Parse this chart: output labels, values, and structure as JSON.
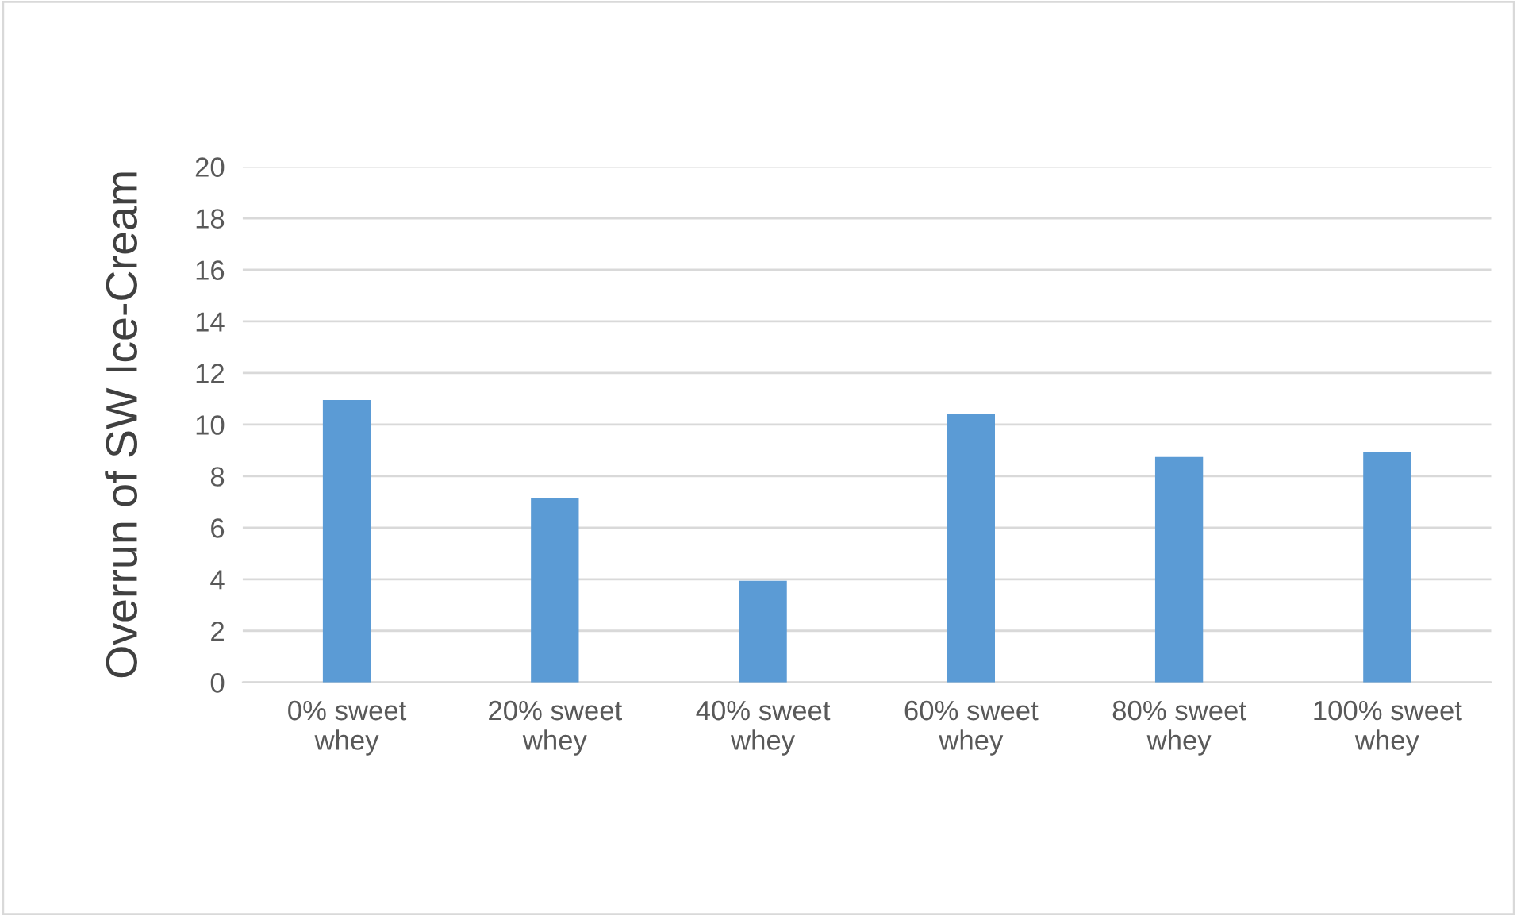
{
  "chart_data": {
    "type": "bar",
    "ylabel": "Overrun of SW Ice-Cream",
    "categories": [
      "0% sweet\nwhey",
      "20% sweet\nwhey",
      "40% sweet\nwhey",
      "60% sweet\nwhey",
      "80% sweet\nwhey",
      "100% sweet\nwhey"
    ],
    "values": [
      10.95,
      7.14,
      3.94,
      10.4,
      8.74,
      8.92
    ],
    "color": "#5b9bd5",
    "ylim": [
      0,
      20
    ],
    "yticks": [
      0,
      2,
      4,
      6,
      8,
      10,
      12,
      14,
      16,
      18,
      20
    ],
    "grid": "y",
    "legend": false
  }
}
